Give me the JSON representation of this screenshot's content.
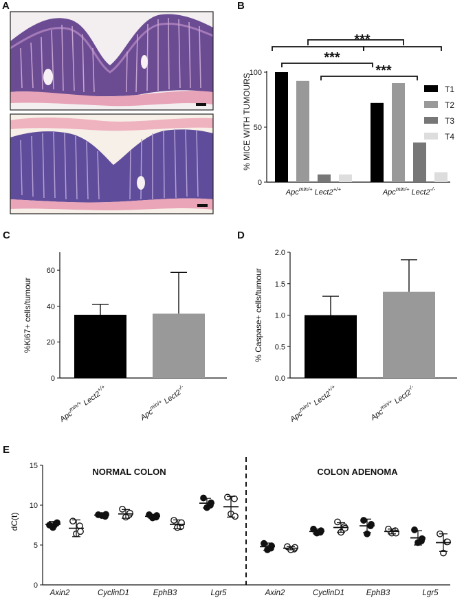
{
  "panels": {
    "a": "A",
    "b": "B",
    "c": "C",
    "d": "D",
    "e": "E"
  },
  "colors": {
    "t1": "#000000",
    "t2": "#999999",
    "t3": "#777777",
    "t4": "#dddddd",
    "he_background": "#e8b8c4",
    "he_tissue": "#6a4c92",
    "he_stroma": "#e9a3b8"
  },
  "histology": {
    "description_icon": "he-stained-colon-section-image"
  },
  "chart_data": [
    {
      "id": "B",
      "type": "bar",
      "ylabel": "% MICE WITH TUMOURS",
      "ylim": [
        0,
        110
      ],
      "yticks": [
        0,
        50,
        100
      ],
      "groups": [
        {
          "label_italic": "Apc",
          "sup1": "min/+",
          "label_italic2": " Lect2",
          "sup2": "+/+"
        },
        {
          "label_italic": "Apc",
          "sup1": "min/+",
          "label_italic2": " Lect2",
          "sup2": "-/-"
        }
      ],
      "series": [
        {
          "name": "T1",
          "values": [
            100,
            72
          ]
        },
        {
          "name": "T2",
          "values": [
            92,
            90
          ]
        },
        {
          "name": "T3",
          "values": [
            7,
            36
          ]
        },
        {
          "name": "T4",
          "values": [
            7,
            9
          ]
        }
      ],
      "significance": [
        "***",
        "***",
        "***"
      ],
      "legend": "right"
    },
    {
      "id": "C",
      "type": "bar",
      "ylabel": "%Ki67+ cells/tumour",
      "ylim": [
        0,
        70
      ],
      "yticks": [
        0,
        20,
        40,
        60
      ],
      "categories": [
        {
          "label_italic": "Apc",
          "sup1": "min/+",
          "label_italic2": " Lect2",
          "sup2": "+/+"
        },
        {
          "label_italic": "Apc",
          "sup1": "min/+",
          "label_italic2": " Lect2",
          "sup2": "-/-"
        }
      ],
      "values": [
        35.2,
        35.8
      ],
      "errors": [
        5.8,
        23.0
      ]
    },
    {
      "id": "D",
      "type": "bar",
      "ylabel": "% Caspase+ cells/tumour",
      "ylim": [
        0,
        2.0
      ],
      "yticks": [
        "0.0",
        "0.5",
        "1.0",
        "1.5",
        "2.0"
      ],
      "categories": [
        {
          "label_italic": "Apc",
          "sup1": "min/+",
          "label_italic2": " Lect2",
          "sup2": "+/+"
        },
        {
          "label_italic": "Apc",
          "sup1": "min/+",
          "label_italic2": " Lect2",
          "sup2": "-/-"
        }
      ],
      "values": [
        1.0,
        1.37
      ],
      "errors": [
        0.3,
        0.51
      ]
    },
    {
      "id": "E",
      "type": "scatter",
      "ylabel": "dC(t)",
      "ylim": [
        0,
        15
      ],
      "yticks": [
        0,
        5,
        10,
        15
      ],
      "sections": [
        "NORMAL COLON",
        "COLON ADENOMA"
      ],
      "genes": [
        "Axin2",
        "CyclinD1",
        "EphB3",
        "Lgr5",
        "Axin2",
        "CyclinD1",
        "EphB3",
        "Lgr5"
      ],
      "groups": [
        {
          "filled": true,
          "mean": 7.6,
          "sd": 0.35,
          "points": [
            7.5,
            7.7,
            7.2,
            7.8
          ]
        },
        {
          "filled": false,
          "mean": 7.1,
          "sd": 1.05,
          "points": [
            8.0,
            7.4,
            6.4,
            6.7
          ]
        },
        {
          "filled": true,
          "mean": 8.75,
          "sd": 0.2,
          "points": [
            8.8,
            8.6,
            8.7,
            8.85
          ]
        },
        {
          "filled": false,
          "mean": 8.9,
          "sd": 0.55,
          "points": [
            9.5,
            8.8,
            8.5,
            9.0
          ]
        },
        {
          "filled": true,
          "mean": 8.6,
          "sd": 0.25,
          "points": [
            8.8,
            8.5,
            8.4,
            8.7
          ]
        },
        {
          "filled": false,
          "mean": 7.6,
          "sd": 0.55,
          "points": [
            8.1,
            7.3,
            7.2,
            7.8
          ]
        },
        {
          "filled": true,
          "mean": 10.25,
          "sd": 0.6,
          "points": [
            10.9,
            10.0,
            9.7,
            10.3
          ]
        },
        {
          "filled": false,
          "mean": 9.8,
          "sd": 1.3,
          "points": [
            11.0,
            10.8,
            8.9,
            8.6
          ]
        },
        {
          "filled": true,
          "mean": 4.8,
          "sd": 0.45,
          "points": [
            5.2,
            4.6,
            4.4,
            4.9
          ]
        },
        {
          "filled": false,
          "mean": 4.6,
          "sd": 0.2,
          "points": [
            4.8,
            4.5,
            4.4,
            4.7
          ]
        },
        {
          "filled": true,
          "mean": 6.7,
          "sd": 0.3,
          "points": [
            7.0,
            6.6,
            6.5,
            6.8
          ]
        },
        {
          "filled": false,
          "mean": 7.2,
          "sd": 0.6,
          "points": [
            7.9,
            7.3,
            6.6,
            7.1
          ]
        },
        {
          "filled": true,
          "mean": 7.4,
          "sd": 0.85,
          "points": [
            8.1,
            7.4,
            6.4,
            7.6
          ]
        },
        {
          "filled": false,
          "mean": 6.7,
          "sd": 0.3,
          "points": [
            7.0,
            6.8,
            6.5,
            6.5
          ]
        },
        {
          "filled": true,
          "mean": 5.9,
          "sd": 0.9,
          "points": [
            6.9,
            5.5,
            5.3,
            5.8
          ]
        },
        {
          "filled": false,
          "mean": 5.3,
          "sd": 1.1,
          "points": [
            6.4,
            5.4,
            4.0,
            5.4
          ]
        }
      ]
    }
  ]
}
